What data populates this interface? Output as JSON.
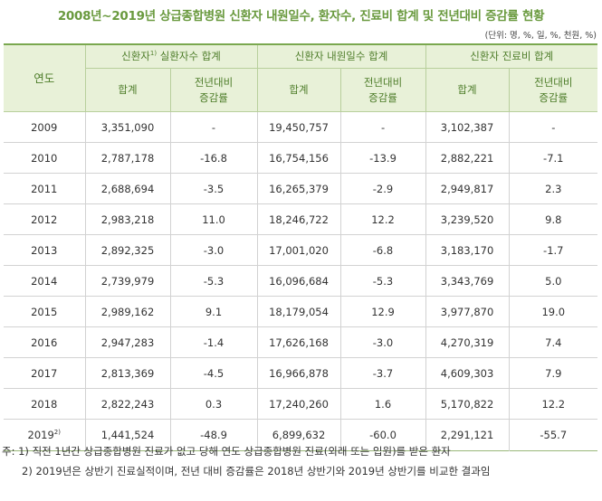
{
  "title": "2008년~2019년 상급종합병원 신환자 내원일수, 환자수, 진료비 합계 및 전년대비 증감률 현황",
  "unit": "(단위: 명, %, 일, %, 천원, %)",
  "headers": {
    "year": "연도",
    "group1": "신환자",
    "group1_sup": "1)",
    "group1_rest": " 실환자수 합계",
    "group2": "신환자 내원일수 합계",
    "group3": "신환자 진료비 합계",
    "sum": "합계",
    "rate_line1": "전년대비",
    "rate_line2": "증감률"
  },
  "rows": [
    {
      "year": "2009",
      "sup": "",
      "c1": "3,351,090",
      "r1": "-",
      "c2": "19,450,757",
      "r2": "-",
      "c3": "3,102,387",
      "r3": "-"
    },
    {
      "year": "2010",
      "sup": "",
      "c1": "2,787,178",
      "r1": "-16.8",
      "c2": "16,754,156",
      "r2": "-13.9",
      "c3": "2,882,221",
      "r3": "-7.1"
    },
    {
      "year": "2011",
      "sup": "",
      "c1": "2,688,694",
      "r1": "-3.5",
      "c2": "16,265,379",
      "r2": "-2.9",
      "c3": "2,949,817",
      "r3": "2.3"
    },
    {
      "year": "2012",
      "sup": "",
      "c1": "2,983,218",
      "r1": "11.0",
      "c2": "18,246,722",
      "r2": "12.2",
      "c3": "3,239,520",
      "r3": "9.8"
    },
    {
      "year": "2013",
      "sup": "",
      "c1": "2,892,325",
      "r1": "-3.0",
      "c2": "17,001,020",
      "r2": "-6.8",
      "c3": "3,183,170",
      "r3": "-1.7"
    },
    {
      "year": "2014",
      "sup": "",
      "c1": "2,739,979",
      "r1": "-5.3",
      "c2": "16,096,684",
      "r2": "-5.3",
      "c3": "3,343,769",
      "r3": "5.0"
    },
    {
      "year": "2015",
      "sup": "",
      "c1": "2,989,162",
      "r1": "9.1",
      "c2": "18,179,054",
      "r2": "12.9",
      "c3": "3,977,870",
      "r3": "19.0"
    },
    {
      "year": "2016",
      "sup": "",
      "c1": "2,947,283",
      "r1": "-1.4",
      "c2": "17,626,168",
      "r2": "-3.0",
      "c3": "4,270,319",
      "r3": "7.4"
    },
    {
      "year": "2017",
      "sup": "",
      "c1": "2,813,369",
      "r1": "-4.5",
      "c2": "16,966,878",
      "r2": "-3.7",
      "c3": "4,609,303",
      "r3": "7.9"
    },
    {
      "year": "2018",
      "sup": "",
      "c1": "2,822,243",
      "r1": "0.3",
      "c2": "17,240,260",
      "r2": "1.6",
      "c3": "5,170,822",
      "r3": "12.2"
    },
    {
      "year": "2019",
      "sup": "2)",
      "c1": "1,441,524",
      "r1": "-48.9",
      "c2": "6,899,632",
      "r2": "-60.0",
      "c3": "2,291,121",
      "r3": "-55.7"
    }
  ],
  "notes": {
    "note1": "주: 1) 직전 1년간 상급종합병원 진료가 없고 당해 연도 상급종합병원 진료(외래 또는 입원)를 받은 환자",
    "note2": "2) 2019년은 상반기 진료실적이며, 전년 대비 증감률은 2018년 상반기와 2019년 상반기를 비교한 결과임"
  }
}
